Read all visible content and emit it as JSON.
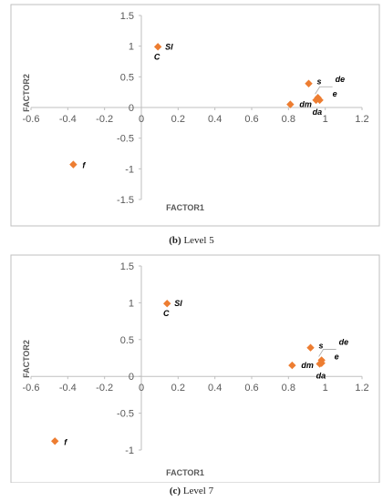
{
  "chart_data": [
    {
      "type": "scatter",
      "caption_label": "(b)",
      "caption_text": "Level 5",
      "xlabel": "FACTOR1",
      "ylabel": "FACTOR2",
      "xlim": [
        -0.6,
        1.2
      ],
      "ylim": [
        -1.5,
        1.5
      ],
      "xticks": [
        "-0.6",
        "-0.4",
        "-0.2",
        "0",
        "0.2",
        "0.4",
        "0.6",
        "0.8",
        "1",
        "1.2"
      ],
      "yticks": [
        "1.5",
        "1",
        "0.5",
        "0",
        "-0.5",
        "-1",
        "-1.5"
      ],
      "grid": false,
      "marker_color": "#ED7D31",
      "points": [
        {
          "label": "Sl",
          "x": 0.09,
          "y": 0.99
        },
        {
          "label": "C",
          "x": 0.09,
          "y": 0.99
        },
        {
          "label": "s",
          "x": 0.91,
          "y": 0.39
        },
        {
          "label": "de",
          "x": 0.96,
          "y": 0.16
        },
        {
          "label": "e",
          "x": 0.97,
          "y": 0.12
        },
        {
          "label": "dm",
          "x": 0.81,
          "y": 0.05
        },
        {
          "label": "da",
          "x": 0.95,
          "y": 0.12
        },
        {
          "label": "f",
          "x": -0.37,
          "y": -0.93
        }
      ]
    },
    {
      "type": "scatter",
      "caption_label": "(c)",
      "caption_text": "Level 7",
      "xlabel": "FACTOR1",
      "ylabel": "FACTOR2",
      "xlim": [
        -0.6,
        1.2
      ],
      "ylim": [
        -1,
        1.5
      ],
      "xticks": [
        "-0.6",
        "-0.4",
        "-0.2",
        "0",
        "0.2",
        "0.4",
        "0.6",
        "0.8",
        "1",
        "1.2"
      ],
      "yticks": [
        "1.5",
        "1",
        "0.5",
        "0",
        "-0.5",
        "-1"
      ],
      "grid": false,
      "marker_color": "#ED7D31",
      "points": [
        {
          "label": "Sl",
          "x": 0.14,
          "y": 0.99
        },
        {
          "label": "C",
          "x": 0.14,
          "y": 0.99
        },
        {
          "label": "s",
          "x": 0.92,
          "y": 0.39
        },
        {
          "label": "de",
          "x": 0.98,
          "y": 0.22
        },
        {
          "label": "e",
          "x": 0.98,
          "y": 0.18
        },
        {
          "label": "dm",
          "x": 0.82,
          "y": 0.15
        },
        {
          "label": "da",
          "x": 0.97,
          "y": 0.17
        },
        {
          "label": "f",
          "x": -0.47,
          "y": -0.88
        }
      ]
    }
  ]
}
